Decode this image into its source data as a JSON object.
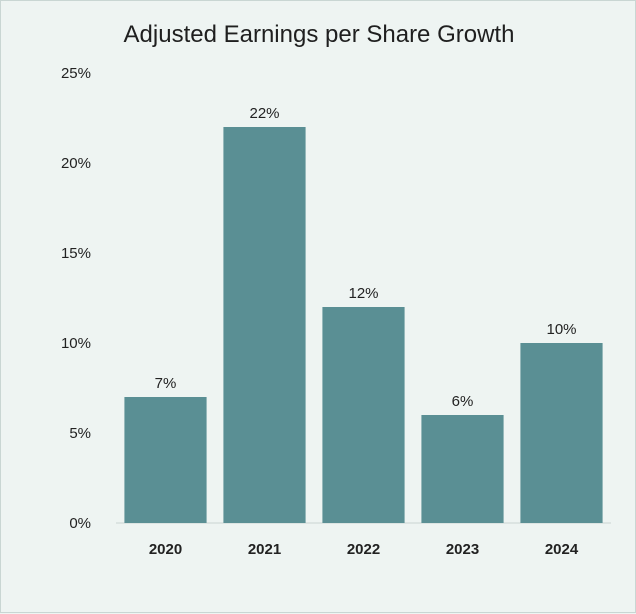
{
  "chart_data": {
    "type": "bar",
    "title": "Adjusted Earnings per Share Growth",
    "xlabel": "",
    "ylabel": "",
    "categories": [
      "2020",
      "2021",
      "2022",
      "2023",
      "2024"
    ],
    "values": [
      7,
      22,
      12,
      6,
      10
    ],
    "value_labels": [
      "7%",
      "22%",
      "12%",
      "6%",
      "10%"
    ],
    "ylim": [
      0,
      25
    ],
    "yticks": [
      0,
      5,
      10,
      15,
      20,
      25
    ],
    "ytick_labels": [
      "0%",
      "5%",
      "10%",
      "15%",
      "20%",
      "25%"
    ],
    "grid": false,
    "legend": "none",
    "bar_color": "#5a8f94",
    "background_color": "#eef4f2"
  }
}
